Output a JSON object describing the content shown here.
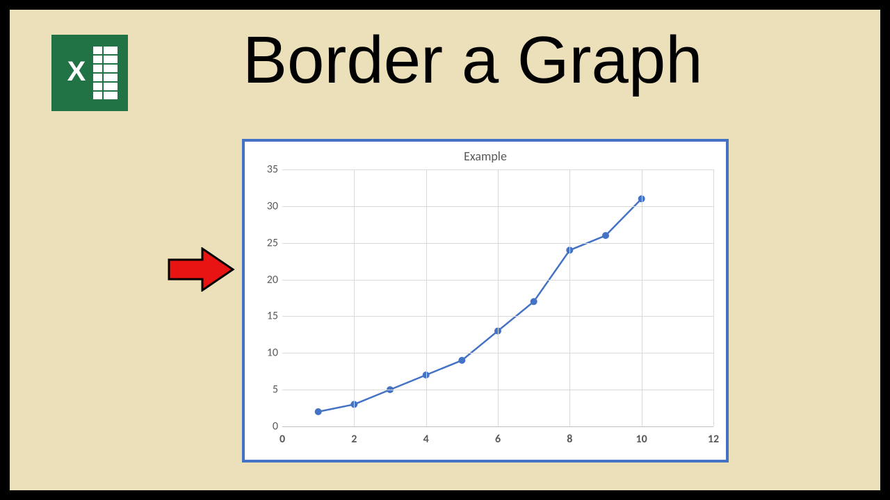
{
  "title": "Border a Graph",
  "title_font": "Comic Sans MS",
  "title_fontsize": 96,
  "title_color": "#000000",
  "background_color": "#ece0bb",
  "outer_border_color": "#000000",
  "excel_logo": {
    "bg_color": "#217346",
    "fg_color": "#ffffff"
  },
  "arrow": {
    "fill": "#e81313",
    "stroke": "#000000"
  },
  "chart": {
    "type": "line",
    "title": "Example",
    "title_fontsize": 18,
    "title_color": "#595959",
    "background": "#ffffff",
    "border_color": "#4472c4",
    "border_width": 4,
    "line_color": "#4472c4",
    "line_width": 2.5,
    "marker_style": "circle",
    "marker_size": 5,
    "marker_color": "#4472c4",
    "grid_color": "#d9d9d9",
    "axis_line_color": "#bfbfbf",
    "label_color": "#595959",
    "label_fontsize": 16,
    "xlim": [
      0,
      12
    ],
    "ylim": [
      0,
      35
    ],
    "x_ticks": [
      0,
      2,
      4,
      6,
      8,
      10,
      12
    ],
    "y_ticks": [
      0,
      5,
      10,
      15,
      20,
      25,
      30,
      35
    ],
    "data": {
      "x": [
        1,
        2,
        3,
        4,
        5,
        6,
        7,
        8,
        9,
        10
      ],
      "y": [
        2,
        3,
        5,
        7,
        9,
        13,
        17,
        24,
        26,
        31
      ]
    }
  }
}
